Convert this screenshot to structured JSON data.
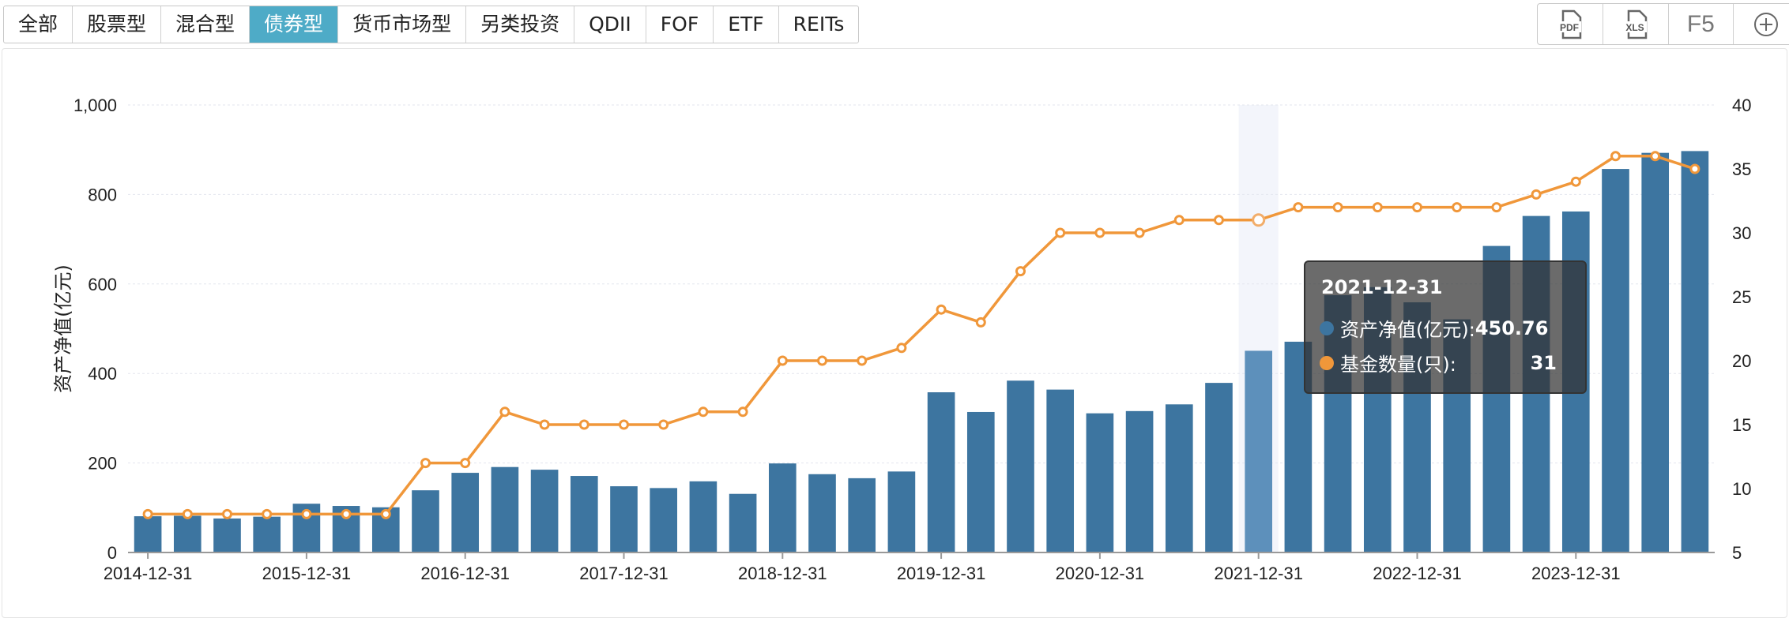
{
  "tabs": [
    {
      "label": "全部",
      "active": false
    },
    {
      "label": "股票型",
      "active": false
    },
    {
      "label": "混合型",
      "active": false
    },
    {
      "label": "债券型",
      "active": true
    },
    {
      "label": "货币市场型",
      "active": false
    },
    {
      "label": "另类投资",
      "active": false
    },
    {
      "label": "QDII",
      "active": false
    },
    {
      "label": "FOF",
      "active": false
    },
    {
      "label": "ETF",
      "active": false
    },
    {
      "label": "REITs",
      "active": false
    }
  ],
  "toolbar": {
    "pdf": "PDF",
    "xls": "XLS",
    "refresh": "F5",
    "add_icon": "plus-circle-icon"
  },
  "colors": {
    "bar": "#3d75a0",
    "bar_highlight": "#5d90bb",
    "line": "#f0973a",
    "active_tab": "#4eabc7"
  },
  "tooltip": {
    "date": "2021-12-31",
    "series1_label": "资产净值(亿元):",
    "series1_value": "450.76",
    "series2_label": "基金数量(只):",
    "series2_value": "31"
  },
  "chart_data": {
    "type": "bar+line",
    "ylabel": "资产净值(亿元)",
    "ylim": [
      0,
      1000
    ],
    "yticks": [
      "0",
      "200",
      "400",
      "600",
      "800",
      "1,000"
    ],
    "y2lim": [
      5,
      40
    ],
    "y2ticks": [
      "5",
      "10",
      "15",
      "20",
      "25",
      "30",
      "35",
      "40"
    ],
    "grid": true,
    "xtick_labels": [
      "2014-12-31",
      "2015-12-31",
      "2016-12-31",
      "2017-12-31",
      "2018-12-31",
      "2019-12-31",
      "2020-12-31",
      "2021-12-31",
      "2022-12-31",
      "2023-12-31"
    ],
    "categories": [
      "2014-12-31",
      "2015-03-31",
      "2015-06-30",
      "2015-09-30",
      "2015-12-31",
      "2016-03-31",
      "2016-06-30",
      "2016-09-30",
      "2016-12-31",
      "2017-03-31",
      "2017-06-30",
      "2017-09-30",
      "2017-12-31",
      "2018-03-31",
      "2018-06-30",
      "2018-09-30",
      "2018-12-31",
      "2019-03-31",
      "2019-06-30",
      "2019-09-30",
      "2019-12-31",
      "2020-03-31",
      "2020-06-30",
      "2020-09-30",
      "2020-12-31",
      "2021-03-31",
      "2021-06-30",
      "2021-09-30",
      "2021-12-31",
      "2022-03-31",
      "2022-06-30",
      "2022-09-30",
      "2022-12-31",
      "2023-03-31",
      "2023-06-30",
      "2023-09-30",
      "2023-12-31",
      "2024-03-31",
      "2024-06-30",
      "2024-09-30"
    ],
    "highlighted_category": "2021-12-31",
    "series": [
      {
        "name": "资产净值(亿元)",
        "type": "bar",
        "axis": "left",
        "values": [
          81,
          82,
          76,
          80,
          109,
          104,
          101,
          139,
          178,
          191,
          185,
          171,
          148,
          144,
          159,
          131,
          199,
          175,
          166,
          181,
          358,
          314,
          384,
          364,
          311,
          316,
          331,
          379,
          450.76,
          471,
          575,
          593,
          559,
          521,
          685,
          752,
          762,
          857,
          893,
          897
        ]
      },
      {
        "name": "基金数量(只)",
        "type": "line",
        "axis": "right",
        "values": [
          8,
          8,
          8,
          8,
          8,
          8,
          8,
          12,
          12,
          16,
          15,
          15,
          15,
          15,
          16,
          16,
          20,
          20,
          20,
          21,
          24,
          23,
          27,
          30,
          30,
          30,
          31,
          31,
          31,
          32,
          32,
          32,
          32,
          32,
          32,
          33,
          34,
          36,
          36,
          35
        ]
      }
    ]
  }
}
